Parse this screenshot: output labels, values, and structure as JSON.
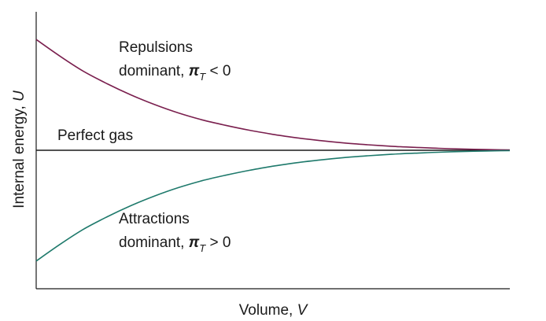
{
  "chart_data": {
    "type": "line",
    "xlabel": "Volume, V",
    "ylabel": "Internal energy, U",
    "xlim": [
      0,
      1
    ],
    "ylim": [
      -1,
      1
    ],
    "grid": false,
    "series": [
      {
        "name": "Perfect gas",
        "color": "#1a1a1a",
        "x": [
          0,
          1
        ],
        "y": [
          0,
          0
        ]
      },
      {
        "name": "Repulsions dominant, πT < 0",
        "color": "#7a1f4e",
        "x": [
          0,
          0.05,
          0.1,
          0.15,
          0.2,
          0.25,
          0.3,
          0.35,
          0.4,
          0.45,
          0.5,
          0.55,
          0.6,
          0.65,
          0.7,
          0.75,
          0.8,
          0.85,
          0.9,
          0.95,
          1
        ],
        "y": [
          0.8,
          0.68,
          0.57,
          0.48,
          0.4,
          0.33,
          0.27,
          0.22,
          0.18,
          0.145,
          0.115,
          0.09,
          0.07,
          0.053,
          0.04,
          0.029,
          0.021,
          0.014,
          0.009,
          0.005,
          0.002
        ]
      },
      {
        "name": "Attractions dominant, πT > 0",
        "color": "#1f7a6c",
        "x": [
          0,
          0.05,
          0.1,
          0.15,
          0.2,
          0.25,
          0.3,
          0.35,
          0.4,
          0.45,
          0.5,
          0.55,
          0.6,
          0.65,
          0.7,
          0.75,
          0.8,
          0.85,
          0.9,
          0.95,
          1
        ],
        "y": [
          -0.8,
          -0.68,
          -0.57,
          -0.48,
          -0.4,
          -0.33,
          -0.27,
          -0.22,
          -0.18,
          -0.145,
          -0.115,
          -0.09,
          -0.07,
          -0.053,
          -0.04,
          -0.029,
          -0.021,
          -0.014,
          -0.009,
          -0.005,
          -0.002
        ]
      }
    ],
    "annotations": {
      "perfect_gas": "Perfect gas",
      "repulsions_line1": "Repulsions",
      "repulsions_line2_prefix": "dominant, ",
      "repulsions_pi": "π",
      "repulsions_sub": "T",
      "repulsions_rel": " < 0",
      "attractions_line1": "Attractions",
      "attractions_line2_prefix": "dominant, ",
      "attractions_pi": "π",
      "attractions_sub": "T",
      "attractions_rel": " > 0"
    },
    "axis_labels": {
      "x_text": "Volume, ",
      "x_var": "V",
      "y_text": "Internal energy, ",
      "y_var": "U"
    }
  }
}
